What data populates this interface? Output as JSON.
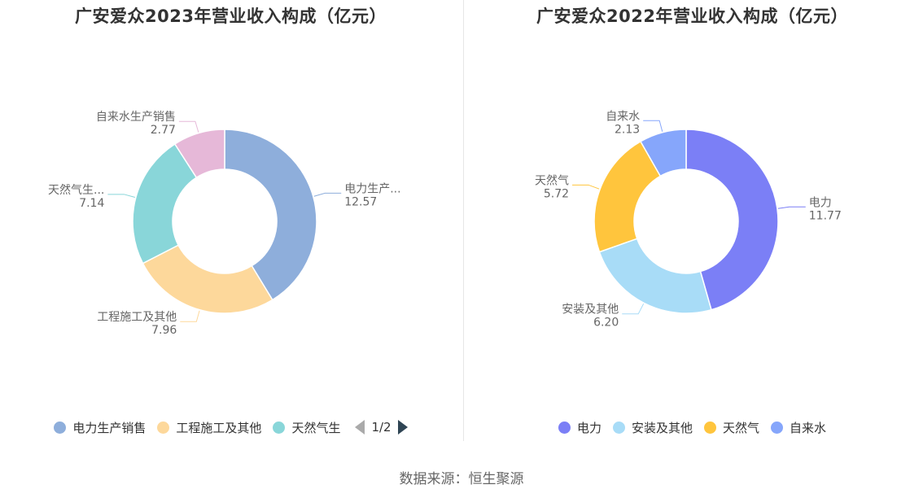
{
  "charts": [
    {
      "title": "广安爱众2023年营业收入构成（亿元）",
      "legend": {
        "items": [
          "电力生产销售",
          "工程施工及其他",
          "天然气生"
        ],
        "pager": "1/2"
      }
    },
    {
      "title": "广安爱众2022年营业收入构成（亿元）",
      "legend": {
        "items": [
          "电力",
          "安装及其他",
          "天然气",
          "自来水"
        ]
      }
    }
  ],
  "chart_data": [
    {
      "type": "pie",
      "donut": true,
      "title": "广安爱众2023年营业收入构成（亿元）",
      "slices": [
        {
          "name": "电力生产销售",
          "label": "电力生产...",
          "value": 12.57,
          "value_text": "12.57",
          "color": "#8eaedb"
        },
        {
          "name": "工程施工及其他",
          "label": "工程施工及其他",
          "value": 7.96,
          "value_text": "7.96",
          "color": "#fdd89b"
        },
        {
          "name": "天然气生产销售",
          "label": "天然气生...",
          "value": 7.14,
          "value_text": "7.14",
          "color": "#89d6d9"
        },
        {
          "name": "自来水生产销售",
          "label": "自来水生产销售",
          "value": 2.77,
          "value_text": "2.77",
          "color": "#e6b8d8"
        }
      ]
    },
    {
      "type": "pie",
      "donut": true,
      "title": "广安爱众2022年营业收入构成（亿元）",
      "slices": [
        {
          "name": "电力",
          "label": "电力",
          "value": 11.77,
          "value_text": "11.77",
          "color": "#7b7ff6"
        },
        {
          "name": "安装及其他",
          "label": "安装及其他",
          "value": 6.2,
          "value_text": "6.20",
          "color": "#a8dcf7"
        },
        {
          "name": "天然气",
          "label": "天然气",
          "value": 5.72,
          "value_text": "5.72",
          "color": "#ffc53d"
        },
        {
          "name": "自来水",
          "label": "自来水",
          "value": 2.13,
          "value_text": "2.13",
          "color": "#86a6fb"
        }
      ]
    }
  ],
  "footer": {
    "source": "数据来源：恒生聚源"
  }
}
